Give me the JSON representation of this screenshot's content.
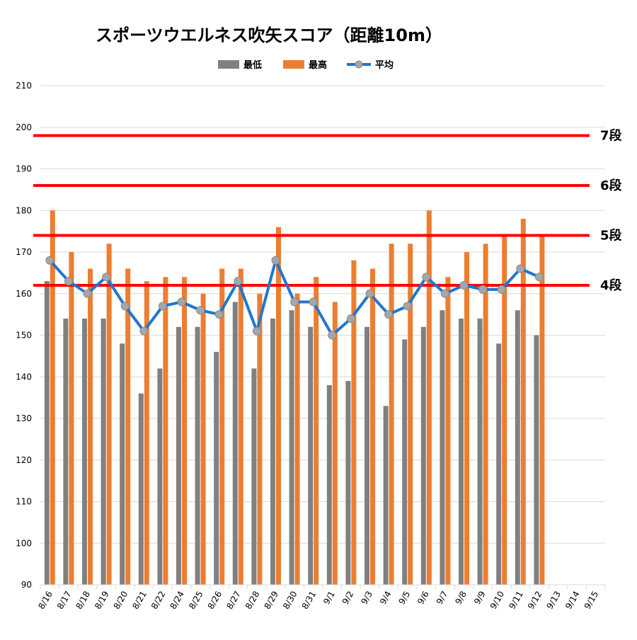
{
  "colors": {
    "min": "#808080",
    "max": "#ED7D31",
    "avg_line": "#1F77D0",
    "avg_marker": "#A6A6A6",
    "dan_line": "#FF0000",
    "grid": "#D9D9D9"
  },
  "chart_data": {
    "type": "bar",
    "title": "スポーツウエルネス吹矢スコア（距離10m）",
    "xlabel": "",
    "ylabel": "",
    "ylim": [
      90,
      210
    ],
    "yticks": [
      90,
      100,
      110,
      120,
      130,
      140,
      150,
      160,
      170,
      180,
      190,
      200,
      210
    ],
    "grid": true,
    "legend_position": "top",
    "categories": [
      "8/16",
      "8/17",
      "8/18",
      "8/19",
      "8/20",
      "8/21",
      "8/22",
      "8/24",
      "8/25",
      "8/26",
      "8/27",
      "8/28",
      "8/29",
      "8/30",
      "8/31",
      "9/1",
      "9/2",
      "9/3",
      "9/4",
      "9/5",
      "9/6",
      "9/7",
      "9/8",
      "9/9",
      "9/10",
      "9/11",
      "9/12",
      "9/13",
      "9/14",
      "9/15"
    ],
    "series": [
      {
        "name": "最低",
        "type": "bar",
        "values": [
          163,
          154,
          154,
          154,
          148,
          136,
          142,
          152,
          152,
          146,
          158,
          142,
          154,
          156,
          152,
          138,
          139,
          152,
          133,
          149,
          152,
          156,
          154,
          154,
          148,
          156,
          150,
          null,
          null,
          null
        ]
      },
      {
        "name": "最高",
        "type": "bar",
        "values": [
          180,
          170,
          166,
          172,
          166,
          163,
          164,
          164,
          160,
          166,
          166,
          160,
          176,
          160,
          164,
          158,
          168,
          166,
          172,
          172,
          180,
          164,
          170,
          172,
          174,
          178,
          174,
          null,
          null,
          null
        ]
      },
      {
        "name": "平均",
        "type": "line",
        "values": [
          168,
          163,
          160,
          164,
          157,
          151,
          157,
          158,
          156,
          155,
          163,
          151,
          168,
          158,
          158,
          150,
          154,
          160,
          155,
          157,
          164,
          160,
          162,
          161,
          161,
          166,
          164,
          null,
          null,
          null
        ]
      }
    ],
    "reference_lines": [
      {
        "label": "4段",
        "value": 162
      },
      {
        "label": "5段",
        "value": 174
      },
      {
        "label": "6段",
        "value": 186
      },
      {
        "label": "7段",
        "value": 198
      }
    ]
  }
}
